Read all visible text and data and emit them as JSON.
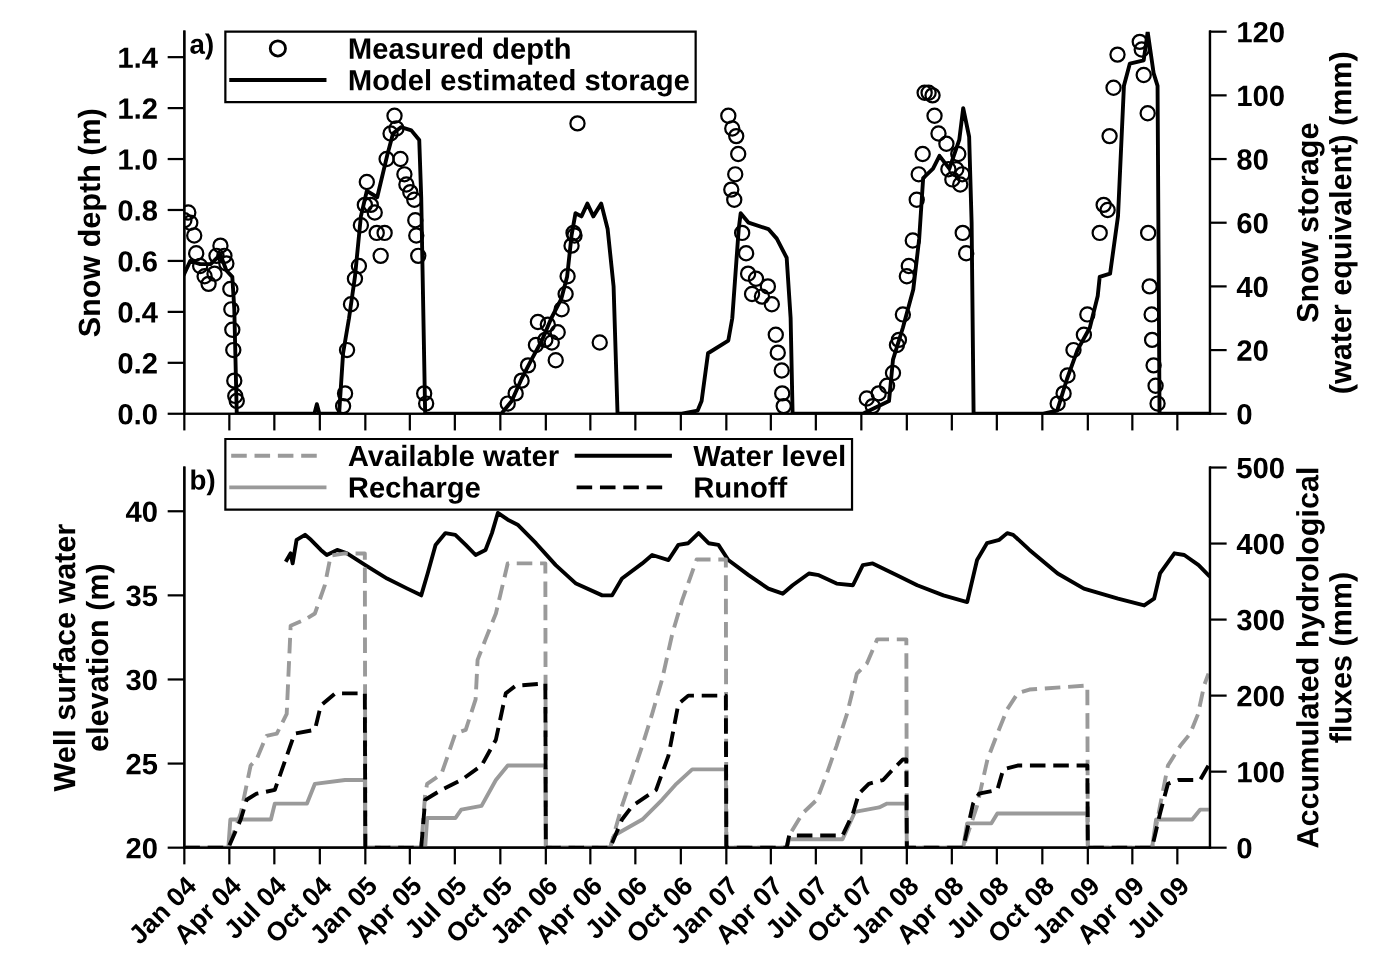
{
  "chart_data": [
    {
      "type": "scatter",
      "ylabel": "Snow depth (m)",
      "y2label": "Snow storage\n(water equivalent) (mm)",
      "annotations": [
        "a)"
      ],
      "xlim": [
        "2004-01-01",
        "2009-09-05"
      ],
      "xticks": [
        {
          "value": "2004-01",
          "label": null
        },
        {
          "value": "2004-04",
          "label": null
        },
        {
          "value": "2004-07",
          "label": null
        },
        {
          "value": "2004-10",
          "label": null
        },
        {
          "value": "2005-01",
          "label": null
        },
        {
          "value": "2005-04",
          "label": null
        },
        {
          "value": "2005-07",
          "label": null
        },
        {
          "value": "2005-10",
          "label": null
        },
        {
          "value": "2006-01",
          "label": null
        },
        {
          "value": "2006-04",
          "label": null
        },
        {
          "value": "2006-07",
          "label": null
        },
        {
          "value": "2006-10",
          "label": null
        },
        {
          "value": "2007-01",
          "label": null
        },
        {
          "value": "2007-04",
          "label": null
        },
        {
          "value": "2007-07",
          "label": null
        },
        {
          "value": "2007-10",
          "label": null
        },
        {
          "value": "2008-01",
          "label": null
        },
        {
          "value": "2008-04",
          "label": null
        },
        {
          "value": "2008-07",
          "label": null
        },
        {
          "value": "2008-10",
          "label": null
        },
        {
          "value": "2009-01",
          "label": null
        },
        {
          "value": "2009-04",
          "label": null
        },
        {
          "value": "2009-07",
          "label": null
        }
      ],
      "ylim": [
        0,
        1.5
      ],
      "yticks": [
        {
          "value": 0,
          "label": "0.0"
        },
        {
          "value": 0.2,
          "label": "0.2"
        },
        {
          "value": 0.4,
          "label": "0.4"
        },
        {
          "value": 0.6,
          "label": "0.6"
        },
        {
          "value": 0.8,
          "label": "0.8"
        },
        {
          "value": 1.0,
          "label": "1.0"
        },
        {
          "value": 1.2,
          "label": "1.2"
        },
        {
          "value": 1.4,
          "label": "1.4"
        }
      ],
      "y2lim": [
        0,
        120
      ],
      "y2ticks": [
        0,
        20,
        40,
        60,
        80,
        100,
        120
      ],
      "tick_labels": "y",
      "legend": "top left",
      "series": [
        {
          "name": "Measured depth",
          "type": "scatter",
          "marker": "circle",
          "color": "#000000",
          "x": [
            "2004-01-01",
            "2004-01-09",
            "2004-01-13",
            "2004-01-21",
            "2004-01-25",
            "2004-02-02",
            "2004-02-11",
            "2004-02-19",
            "2004-03-02",
            "2004-03-06",
            "2004-03-14",
            "2004-03-22",
            "2004-03-26",
            "2004-04-03",
            "2004-04-05",
            "2004-04-07",
            "2004-04-09",
            "2004-04-11",
            "2004-04-13",
            "2004-04-16",
            "2004-11-17",
            "2004-11-21",
            "2004-11-25",
            "2004-12-03",
            "2004-12-11",
            "2004-12-19",
            "2004-12-23",
            "2004-12-31",
            "2005-01-04",
            "2005-01-12",
            "2005-01-20",
            "2005-01-24",
            "2005-02-01",
            "2005-02-09",
            "2005-02-13",
            "2005-02-21",
            "2005-03-01",
            "2005-03-05",
            "2005-03-13",
            "2005-03-21",
            "2005-03-25",
            "2005-04-02",
            "2005-04-10",
            "2005-04-12",
            "2005-04-14",
            "2005-04-18",
            "2005-04-30",
            "2005-05-04",
            "2005-10-16",
            "2005-11-01",
            "2005-11-13",
            "2005-11-26",
            "2005-12-12",
            "2005-12-16",
            "2005-12-31",
            "2006-01-05",
            "2006-01-13",
            "2006-01-21",
            "2006-01-25",
            "2006-02-02",
            "2006-02-10",
            "2006-02-14",
            "2006-02-22",
            "2006-02-26",
            "2006-02-28",
            "2006-03-06",
            "2006-04-20",
            "2007-01-05",
            "2007-01-11",
            "2007-01-13",
            "2007-01-17",
            "2007-01-19",
            "2007-01-21",
            "2007-01-25",
            "2007-02-02",
            "2007-02-10",
            "2007-02-14",
            "2007-02-22",
            "2007-03-02",
            "2007-03-14",
            "2007-03-26",
            "2007-04-03",
            "2007-04-11",
            "2007-04-15",
            "2007-04-23",
            "2007-04-24",
            "2007-04-27",
            "2007-10-12",
            "2007-10-24",
            "2007-11-05",
            "2007-11-22",
            "2007-12-04",
            "2007-12-12",
            "2007-12-16",
            "2007-12-24",
            "2008-01-01",
            "2008-01-05",
            "2008-01-13",
            "2008-01-21",
            "2008-01-25",
            "2008-02-02",
            "2008-02-06",
            "2008-02-14",
            "2008-02-22",
            "2008-02-26",
            "2008-03-05",
            "2008-03-21",
            "2008-03-25",
            "2008-04-02",
            "2008-04-10",
            "2008-04-14",
            "2008-04-18",
            "2008-04-22",
            "2008-04-23",
            "2008-04-30",
            "2008-11-01",
            "2008-11-13",
            "2008-11-21",
            "2008-12-03",
            "2008-12-24",
            "2008-12-31",
            "2009-01-25",
            "2009-02-02",
            "2009-02-10",
            "2009-02-14",
            "2009-02-22",
            "2009-03-02",
            "2009-04-16",
            "2009-04-20",
            "2009-04-24",
            "2009-05-02",
            "2009-05-03",
            "2009-05-06",
            "2009-05-10",
            "2009-05-11",
            "2009-05-14",
            "2009-05-18",
            "2009-05-22"
          ],
          "values": [
            0.76,
            0.79,
            0.75,
            0.7,
            0.63,
            0.58,
            0.54,
            0.51,
            0.55,
            0.62,
            0.66,
            0.62,
            0.59,
            0.49,
            0.41,
            0.33,
            0.25,
            0.13,
            0.07,
            0.05,
            0.03,
            0.08,
            0.25,
            0.43,
            0.53,
            0.58,
            0.74,
            0.82,
            0.91,
            0.82,
            0.79,
            0.71,
            0.62,
            0.71,
            1.0,
            1.1,
            1.17,
            1.12,
            1.0,
            0.94,
            0.9,
            0.87,
            0.84,
            0.76,
            0.7,
            0.62,
            0.08,
            0.04,
            0.04,
            0.08,
            0.13,
            0.19,
            0.27,
            0.36,
            0.29,
            0.35,
            0.28,
            0.21,
            0.32,
            0.41,
            0.47,
            0.54,
            0.66,
            0.71,
            0.7,
            1.14,
            0.28,
            1.17,
            0.88,
            1.12,
            0.84,
            0.94,
            1.09,
            1.02,
            0.71,
            0.63,
            0.55,
            0.47,
            0.53,
            0.46,
            0.5,
            0.43,
            0.31,
            0.24,
            0.17,
            0.08,
            0.03,
            0.06,
            0.03,
            0.08,
            0.11,
            0.16,
            0.27,
            0.29,
            0.39,
            0.54,
            0.58,
            0.68,
            0.84,
            0.94,
            1.02,
            1.26,
            1.26,
            1.25,
            1.17,
            1.1,
            1.06,
            0.96,
            0.92,
            0.96,
            1.02,
            0.9,
            0.94,
            0.71,
            0.63,
            0.04,
            0.08,
            0.15,
            0.25,
            0.31,
            0.39,
            0.71,
            0.82,
            0.8,
            1.09,
            1.28,
            1.41,
            1.46,
            1.43,
            1.33,
            1.18,
            0.71,
            0.5,
            0.39,
            0.29,
            0.19,
            0.11,
            0.04
          ]
        },
        {
          "name": "Model estimated storage",
          "type": "line",
          "axis": "y2",
          "color": "#000000",
          "x": [
            "2004-01-01",
            "2004-01-13",
            "2004-02-02",
            "2004-02-23",
            "2004-03-14",
            "2004-03-26",
            "2004-04-07",
            "2004-04-11",
            "2004-04-16",
            "2004-09-20",
            "2004-09-25",
            "2004-09-30",
            "2004-11-09",
            "2004-11-17",
            "2004-11-29",
            "2004-12-11",
            "2004-12-23",
            "2005-01-04",
            "2005-01-25",
            "2005-02-14",
            "2005-02-26",
            "2005-03-14",
            "2005-04-04",
            "2005-04-20",
            "2005-04-24",
            "2005-05-02",
            "2005-10-03",
            "2005-10-24",
            "2005-11-13",
            "2005-12-03",
            "2005-12-24",
            "2006-01-12",
            "2006-02-01",
            "2006-02-13",
            "2006-02-22",
            "2006-03-02",
            "2006-03-14",
            "2006-03-26",
            "2006-04-07",
            "2006-04-23",
            "2006-05-06",
            "2006-05-14",
            "2006-05-18",
            "2006-05-26",
            "2006-10-03",
            "2006-11-04",
            "2006-11-12",
            "2006-11-25",
            "2007-01-05",
            "2007-01-13",
            "2007-01-26",
            "2007-01-30",
            "2007-02-15",
            "2007-03-27",
            "2007-04-13",
            "2007-05-03",
            "2007-05-11",
            "2007-05-15",
            "2007-10-04",
            "2007-11-26",
            "2007-12-04",
            "2007-12-24",
            "2008-01-14",
            "2008-01-26",
            "2008-02-03",
            "2008-02-23",
            "2008-03-07",
            "2008-03-27",
            "2008-04-16",
            "2008-04-24",
            "2008-05-06",
            "2008-05-11",
            "2008-05-15",
            "2008-10-03",
            "2008-10-31",
            "2008-11-20",
            "2008-12-11",
            "2009-01-05",
            "2009-01-21",
            "2009-01-25",
            "2009-02-15",
            "2009-03-03",
            "2009-03-15",
            "2009-03-27",
            "2009-04-24",
            "2009-05-02",
            "2009-05-14",
            "2009-05-22",
            "2009-05-26",
            "2009-09-05"
          ],
          "values": [
            44,
            48,
            47,
            47,
            50,
            45,
            43,
            33,
            0,
            0,
            3,
            0,
            0,
            19,
            30,
            43,
            62,
            70,
            68,
            81,
            88,
            90,
            89,
            86,
            68,
            0,
            0,
            4,
            11,
            17,
            23,
            30,
            36,
            43,
            56,
            63,
            62,
            66,
            62,
            66,
            58,
            46,
            40,
            0,
            0,
            1,
            4,
            19,
            23,
            30,
            58,
            63,
            60,
            58,
            55,
            49,
            30,
            0,
            0,
            4,
            17,
            27,
            39,
            55,
            74,
            77,
            81,
            77,
            86,
            96,
            87,
            60,
            0,
            0,
            1,
            11,
            20,
            27,
            37,
            43,
            44,
            62,
            103,
            110,
            111,
            120,
            107,
            103,
            0,
            0
          ]
        }
      ]
    },
    {
      "type": "line",
      "ylabel": "Well surface water\nelevation (m)",
      "y2label": "Accumulated hydrological\nfluxes (mm)",
      "annotations": [
        "b)"
      ],
      "xlim": [
        "2004-01-01",
        "2009-09-05"
      ],
      "xticks": [
        {
          "value": "2004-01",
          "label": "Jan 04"
        },
        {
          "value": "2004-04",
          "label": "Apr 04"
        },
        {
          "value": "2004-07",
          "label": "Jul 04"
        },
        {
          "value": "2004-10",
          "label": "Oct 04"
        },
        {
          "value": "2005-01",
          "label": "Jan 05"
        },
        {
          "value": "2005-04",
          "label": "Apr 05"
        },
        {
          "value": "2005-07",
          "label": "Jul 05"
        },
        {
          "value": "2005-10",
          "label": "Oct 05"
        },
        {
          "value": "2006-01",
          "label": "Jan 06"
        },
        {
          "value": "2006-04",
          "label": "Apr 06"
        },
        {
          "value": "2006-07",
          "label": "Jul 06"
        },
        {
          "value": "2006-10",
          "label": "Oct 06"
        },
        {
          "value": "2007-01",
          "label": "Jan 07"
        },
        {
          "value": "2007-04",
          "label": "Apr 07"
        },
        {
          "value": "2007-07",
          "label": "Jul 07"
        },
        {
          "value": "2007-10",
          "label": "Oct 07"
        },
        {
          "value": "2008-01",
          "label": "Jan 08"
        },
        {
          "value": "2008-04",
          "label": "Apr 08"
        },
        {
          "value": "2008-07",
          "label": "Jul 08"
        },
        {
          "value": "2008-10",
          "label": "Oct 08"
        },
        {
          "value": "2009-01",
          "label": "Jan 09"
        },
        {
          "value": "2009-04",
          "label": "Apr 09"
        },
        {
          "value": "2009-07",
          "label": "Jul 09"
        }
      ],
      "ylim": [
        20,
        42.6
      ],
      "yticks": [
        20,
        25,
        30,
        35,
        40
      ],
      "y2lim": [
        0,
        500
      ],
      "y2ticks": [
        0,
        100,
        200,
        300,
        400,
        500
      ],
      "legend": "top left",
      "series": [
        {
          "name": "Available water",
          "axis": "y2",
          "color": "#9a9a9a",
          "line_style": "dashed",
          "x": [
            "2004-01-01",
            "2004-03-30",
            "2004-04-24",
            "2004-05-14",
            "2004-05-26",
            "2004-06-15",
            "2004-07-06",
            "2004-07-26",
            "2004-08-03",
            "2004-09-01",
            "2004-09-21",
            "2004-10-11",
            "2004-10-23",
            "2004-11-21",
            "2004-12-31",
            "2005-01-01",
            "2005-04-24",
            "2005-05-02",
            "2005-05-06",
            "2005-06-04",
            "2005-07-02",
            "2005-07-23",
            "2005-08-12",
            "2005-08-16",
            "2005-09-01",
            "2005-09-22",
            "2005-10-16",
            "2005-12-24",
            "2005-12-31",
            "2006-01-01",
            "2006-05-11",
            "2006-06-04",
            "2006-07-15",
            "2006-08-04",
            "2006-08-24",
            "2006-09-14",
            "2006-10-04",
            "2006-11-02",
            "2006-12-31",
            "2007-01-01",
            "2007-05-03",
            "2007-05-08",
            "2007-06-04",
            "2007-07-03",
            "2007-07-23",
            "2007-08-12",
            "2007-09-02",
            "2007-09-22",
            "2007-10-12",
            "2007-11-02",
            "2007-12-31",
            "2008-01-01",
            "2008-04-24",
            "2008-05-22",
            "2008-06-12",
            "2008-07-02",
            "2008-07-22",
            "2008-08-12",
            "2008-09-05",
            "2008-12-24",
            "2008-12-31",
            "2009-01-01",
            "2009-05-11",
            "2009-05-27",
            "2009-06-12",
            "2009-07-07",
            "2009-07-27",
            "2009-08-12",
            "2009-08-24",
            "2009-09-02"
          ],
          "values": [
            0,
            0,
            45,
            108,
            116,
            147,
            150,
            176,
            292,
            300,
            308,
            345,
            384,
            387,
            387,
            0,
            0,
            71,
            84,
            97,
            150,
            155,
            195,
            247,
            274,
            308,
            374,
            374,
            374,
            0,
            0,
            55,
            134,
            176,
            221,
            282,
            326,
            379,
            379,
            0,
            0,
            16,
            45,
            63,
            97,
            134,
            176,
            229,
            242,
            274,
            274,
            0,
            0,
            55,
            116,
            150,
            182,
            203,
            208,
            213,
            213,
            0,
            0,
            55,
            108,
            134,
            150,
            176,
            213,
            229
          ]
        },
        {
          "name": "Recharge",
          "axis": "y2",
          "color": "#9a9a9a",
          "line_style": "solid",
          "x": [
            "2004-01-01",
            "2004-03-30",
            "2004-04-03",
            "2004-06-24",
            "2004-07-02",
            "2004-09-05",
            "2004-09-21",
            "2004-11-21",
            "2004-12-31",
            "2005-01-01",
            "2005-05-02",
            "2005-05-06",
            "2005-07-02",
            "2005-07-14",
            "2005-08-24",
            "2005-09-22",
            "2005-10-16",
            "2005-12-31",
            "2006-01-01",
            "2006-05-11",
            "2006-05-19",
            "2006-07-15",
            "2006-08-24",
            "2006-09-22",
            "2006-10-24",
            "2006-12-31",
            "2007-01-01",
            "2007-05-03",
            "2007-05-08",
            "2007-08-24",
            "2007-09-18",
            "2007-11-06",
            "2007-11-22",
            "2007-12-31",
            "2008-01-01",
            "2008-04-24",
            "2008-05-02",
            "2008-06-20",
            "2008-07-02",
            "2008-12-31",
            "2009-01-01",
            "2009-05-11",
            "2009-05-19",
            "2009-07-31",
            "2009-08-16",
            "2009-09-02"
          ],
          "values": [
            0,
            0,
            37,
            37,
            58,
            58,
            84,
            89,
            89,
            0,
            0,
            39,
            39,
            50,
            55,
            89,
            108,
            108,
            0,
            0,
            16,
            37,
            63,
            84,
            103,
            103,
            0,
            0,
            11,
            11,
            47,
            53,
            58,
            58,
            0,
            0,
            32,
            32,
            45,
            45,
            0,
            0,
            37,
            37,
            50,
            50
          ]
        },
        {
          "name": "Water level",
          "color": "#000000",
          "line_style": "solid",
          "x": [
            "2004-07-26",
            "2004-08-03",
            "2004-08-07",
            "2004-08-15",
            "2004-09-01",
            "2004-09-13",
            "2004-10-03",
            "2004-10-15",
            "2004-11-05",
            "2004-11-25",
            "2005-01-01",
            "2005-02-14",
            "2005-03-27",
            "2005-04-24",
            "2005-05-07",
            "2005-05-23",
            "2005-06-12",
            "2005-07-02",
            "2005-07-23",
            "2005-08-12",
            "2005-09-01",
            "2005-09-14",
            "2005-09-26",
            "2005-10-16",
            "2005-11-05",
            "2005-12-12",
            "2006-01-21",
            "2006-03-03",
            "2006-04-25",
            "2006-05-15",
            "2006-06-04",
            "2006-07-15",
            "2006-08-04",
            "2006-09-06",
            "2006-09-26",
            "2006-10-16",
            "2006-11-06",
            "2006-11-26",
            "2006-12-16",
            "2007-01-05",
            "2007-02-15",
            "2007-03-27",
            "2007-04-25",
            "2007-05-15",
            "2007-06-17",
            "2007-07-07",
            "2007-08-12",
            "2007-09-14",
            "2007-10-04",
            "2007-10-24",
            "2007-12-12",
            "2008-01-22",
            "2008-03-15",
            "2008-05-02",
            "2008-05-22",
            "2008-06-11",
            "2008-07-06",
            "2008-07-22",
            "2008-08-03",
            "2008-09-05",
            "2008-11-01",
            "2008-12-24",
            "2009-03-03",
            "2009-04-25",
            "2009-05-15",
            "2009-05-27",
            "2009-06-25",
            "2009-07-15",
            "2009-08-13",
            "2009-09-02"
          ],
          "values": [
            37.1,
            37.5,
            36.9,
            38.3,
            38.6,
            38.3,
            37.7,
            37.4,
            37.7,
            37.5,
            36.8,
            36.0,
            35.4,
            35.0,
            36.3,
            38.0,
            38.7,
            38.6,
            38.0,
            37.4,
            37.7,
            38.7,
            39.9,
            39.5,
            39.2,
            38.1,
            36.8,
            35.7,
            35.0,
            35.0,
            36.0,
            36.9,
            37.4,
            37.1,
            38.0,
            38.1,
            38.7,
            38.1,
            38.0,
            37.1,
            36.2,
            35.4,
            35.1,
            35.6,
            36.3,
            36.2,
            35.7,
            35.6,
            36.8,
            36.9,
            36.2,
            35.6,
            35.0,
            34.6,
            37.1,
            38.1,
            38.3,
            38.7,
            38.6,
            37.7,
            36.3,
            35.4,
            34.8,
            34.4,
            34.8,
            36.3,
            37.5,
            37.4,
            36.8,
            36.2
          ]
        },
        {
          "name": "Runoff",
          "axis": "y2",
          "color": "#000000",
          "line_style": "dashed",
          "x": [
            "2004-01-01",
            "2004-03-30",
            "2004-04-24",
            "2004-05-06",
            "2004-05-26",
            "2004-07-02",
            "2004-08-11",
            "2004-09-21",
            "2004-10-03",
            "2004-11-01",
            "2004-12-31",
            "2005-01-01",
            "2005-04-24",
            "2005-05-02",
            "2005-06-04",
            "2005-07-14",
            "2005-08-24",
            "2005-09-22",
            "2005-10-12",
            "2005-11-01",
            "2005-12-31",
            "2006-01-01",
            "2006-05-11",
            "2006-06-04",
            "2006-06-25",
            "2006-08-12",
            "2006-09-06",
            "2006-09-26",
            "2006-10-16",
            "2006-12-31",
            "2007-01-01",
            "2007-05-03",
            "2007-05-08",
            "2007-08-24",
            "2007-09-14",
            "2007-09-26",
            "2007-10-16",
            "2007-11-14",
            "2007-12-04",
            "2007-12-24",
            "2007-12-31",
            "2008-01-01",
            "2008-04-24",
            "2008-05-14",
            "2008-05-26",
            "2008-07-02",
            "2008-07-14",
            "2008-08-12",
            "2008-12-31",
            "2009-01-01",
            "2009-05-11",
            "2009-05-27",
            "2009-06-12",
            "2009-07-03",
            "2009-08-16",
            "2009-09-02"
          ],
          "values": [
            0,
            0,
            37,
            63,
            71,
            76,
            150,
            155,
            187,
            203,
            203,
            0,
            0,
            63,
            76,
            89,
            108,
            142,
            203,
            213,
            216,
            0,
            0,
            37,
            55,
            76,
            121,
            189,
            200,
            200,
            0,
            0,
            16,
            16,
            45,
            71,
            84,
            89,
            103,
            116,
            116,
            0,
            0,
            58,
            71,
            76,
            103,
            108,
            108,
            0,
            0,
            45,
            84,
            89,
            89,
            108
          ]
        }
      ]
    }
  ]
}
